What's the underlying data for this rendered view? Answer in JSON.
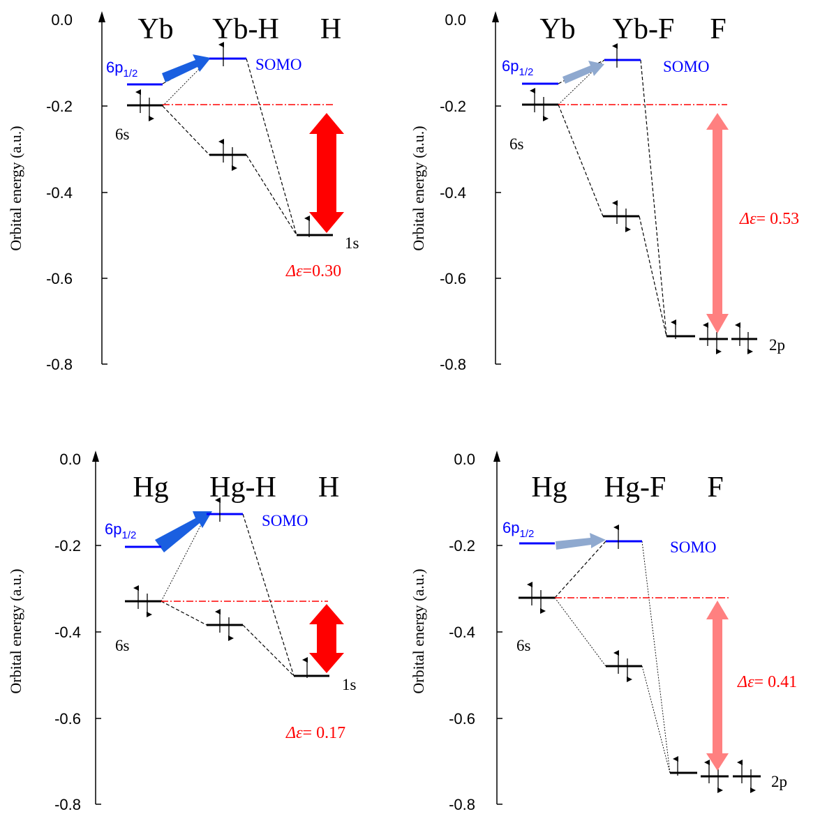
{
  "panels": [
    {
      "id": "yb-h",
      "y_axis_label": "Orbital energy (a.u.)",
      "ticks": [
        "0.0",
        "-0.2",
        "-0.4",
        "-0.6",
        "-0.8"
      ],
      "header": {
        "left": "Yb",
        "mid": "Yb-H",
        "right": "H"
      },
      "labels": {
        "p_orbital": "6p",
        "p_sub": "1/2",
        "s_orbital": "6s",
        "somo": "SOMO",
        "ligand": "1s"
      },
      "delta": {
        "symbol": "Δε",
        "text": "=0.30"
      },
      "colors": {
        "delta_arrow": "#ff0000",
        "p_arrow": "#1a5fe0"
      }
    },
    {
      "id": "yb-f",
      "y_axis_label": "Orbital energy (a.u.)",
      "ticks": [
        "0.0",
        "-0.2",
        "-0.4",
        "-0.6",
        "-0.8"
      ],
      "header": {
        "left": "Yb",
        "mid": "Yb-F",
        "right": "F"
      },
      "labels": {
        "p_orbital": "6p",
        "p_sub": "1/2",
        "s_orbital": "6s",
        "somo": "SOMO",
        "ligand": "2p"
      },
      "delta": {
        "symbol": "Δε",
        "text": "= 0.53"
      },
      "colors": {
        "delta_arrow": "#ff8080",
        "p_arrow": "#8fa9cf"
      }
    },
    {
      "id": "hg-h",
      "y_axis_label": "Orbital energy (a.u.)",
      "ticks": [
        "0.0",
        "-0.2",
        "-0.4",
        "-0.6",
        "-0.8"
      ],
      "header": {
        "left": "Hg",
        "mid": "Hg-H",
        "right": "H"
      },
      "labels": {
        "p_orbital": "6p",
        "p_sub": "1/2",
        "s_orbital": "6s",
        "somo": "SOMO",
        "ligand": "1s"
      },
      "delta": {
        "symbol": "Δε",
        "text": "= 0.17"
      },
      "colors": {
        "delta_arrow": "#ff0000",
        "p_arrow": "#1a5fe0"
      }
    },
    {
      "id": "hg-f",
      "y_axis_label": "Orbital energy (a.u.)",
      "ticks": [
        "0.0",
        "-0.2",
        "-0.4",
        "-0.6",
        "-0.8"
      ],
      "header": {
        "left": "Hg",
        "mid": "Hg-F",
        "right": "F"
      },
      "labels": {
        "p_orbital": "6p",
        "p_sub": "1/2",
        "s_orbital": "6s",
        "somo": "SOMO",
        "ligand": "2p"
      },
      "delta": {
        "symbol": "Δε",
        "text": "= 0.41"
      },
      "colors": {
        "delta_arrow": "#ff8080",
        "p_arrow": "#8fa9cf"
      }
    }
  ]
}
